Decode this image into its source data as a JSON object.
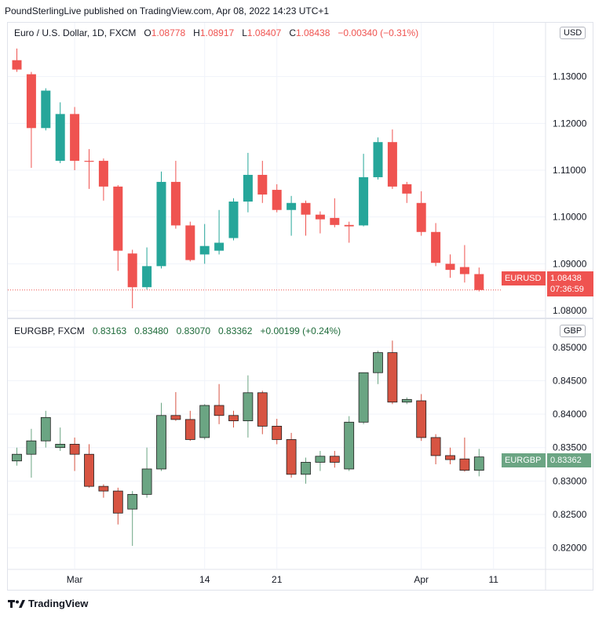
{
  "header": {
    "text": "PoundSterlingLive published on TradingView.com, Apr 08, 2022 14:23 UTC+1"
  },
  "footer": {
    "logo_icon": "tradingview-logo-icon",
    "label": "TradingView"
  },
  "colors": {
    "up_top": "#26a69a",
    "down_top": "#ef5350",
    "up_bottom": "#6ba583",
    "down_bottom": "#d75442"
  },
  "top_pane": {
    "symbol": "Euro / U.S. Dollar, 1D, FXCM",
    "o_label": "O",
    "o": "1.08778",
    "h_label": "H",
    "h": "1.08917",
    "l_label": "L",
    "l": "1.08407",
    "c_label": "C",
    "c": "1.08438",
    "change": "−0.00340 (−0.31%)",
    "unit": "USD",
    "price_tag_name": "EURUSD",
    "price_tag_value": "1.08438",
    "price_tag_timer": "07:36:59"
  },
  "bottom_pane": {
    "symbol": "EURGBP, FXCM",
    "o": "0.83163",
    "h": "0.83480",
    "l": "0.83070",
    "c": "0.83362",
    "change": "+0.00199 (+0.24%)",
    "unit": "GBP",
    "price_tag_name": "EURGBP",
    "price_tag_value": "0.83362"
  },
  "x_axis": {
    "labels": [
      {
        "index": 4,
        "text": "Mar"
      },
      {
        "index": 13,
        "text": "14"
      },
      {
        "index": 18,
        "text": "21"
      },
      {
        "index": 28,
        "text": "Apr"
      },
      {
        "index": 33,
        "text": "11"
      }
    ]
  },
  "chart_data": [
    {
      "type": "candlestick",
      "title": "Euro / U.S. Dollar, 1D, FXCM",
      "ylim": [
        1.0785,
        1.1415
      ],
      "y_ticks": [
        "1.13000",
        "1.12000",
        "1.11000",
        "1.10000",
        "1.09000",
        "1.08000"
      ],
      "candles": [
        {
          "o": 1.1335,
          "h": 1.136,
          "l": 1.131,
          "c": 1.1315
        },
        {
          "o": 1.1305,
          "h": 1.131,
          "l": 1.1105,
          "c": 1.119
        },
        {
          "o": 1.119,
          "h": 1.1275,
          "l": 1.1185,
          "c": 1.127
        },
        {
          "o": 1.112,
          "h": 1.1245,
          "l": 1.1115,
          "c": 1.122
        },
        {
          "o": 1.122,
          "h": 1.1235,
          "l": 1.11,
          "c": 1.112
        },
        {
          "o": 1.112,
          "h": 1.1145,
          "l": 1.106,
          "c": 1.1118
        },
        {
          "o": 1.112,
          "h": 1.1125,
          "l": 1.1035,
          "c": 1.1065
        },
        {
          "o": 1.1065,
          "h": 1.1068,
          "l": 1.0885,
          "c": 1.0928
        },
        {
          "o": 1.0922,
          "h": 1.093,
          "l": 1.0805,
          "c": 1.085
        },
        {
          "o": 1.085,
          "h": 1.0935,
          "l": 1.0845,
          "c": 1.0895
        },
        {
          "o": 1.0895,
          "h": 1.1097,
          "l": 1.089,
          "c": 1.1075
        },
        {
          "o": 1.1075,
          "h": 1.112,
          "l": 1.0975,
          "c": 1.0982
        },
        {
          "o": 1.0982,
          "h": 1.099,
          "l": 1.0905,
          "c": 1.0908
        },
        {
          "o": 1.092,
          "h": 1.0985,
          "l": 1.09,
          "c": 1.0938
        },
        {
          "o": 1.0928,
          "h": 1.1015,
          "l": 1.092,
          "c": 1.0945
        },
        {
          "o": 1.0955,
          "h": 1.104,
          "l": 1.095,
          "c": 1.1033
        },
        {
          "o": 1.1033,
          "h": 1.1137,
          "l": 1.101,
          "c": 1.109
        },
        {
          "o": 1.109,
          "h": 1.112,
          "l": 1.103,
          "c": 1.1048
        },
        {
          "o": 1.1058,
          "h": 1.107,
          "l": 1.101,
          "c": 1.1015
        },
        {
          "o": 1.1015,
          "h": 1.1045,
          "l": 1.096,
          "c": 1.103
        },
        {
          "o": 1.103,
          "h": 1.1035,
          "l": 1.096,
          "c": 1.1005
        },
        {
          "o": 1.1005,
          "h": 1.1012,
          "l": 1.0965,
          "c": 1.0995
        },
        {
          "o": 1.0998,
          "h": 1.104,
          "l": 1.0978,
          "c": 1.0983
        },
        {
          "o": 1.0983,
          "h": 1.099,
          "l": 1.0945,
          "c": 1.098
        },
        {
          "o": 1.0982,
          "h": 1.1135,
          "l": 1.098,
          "c": 1.1085
        },
        {
          "o": 1.1085,
          "h": 1.117,
          "l": 1.108,
          "c": 1.116
        },
        {
          "o": 1.116,
          "h": 1.1187,
          "l": 1.106,
          "c": 1.1065
        },
        {
          "o": 1.107,
          "h": 1.1075,
          "l": 1.103,
          "c": 1.105
        },
        {
          "o": 1.103,
          "h": 1.1055,
          "l": 1.096,
          "c": 1.0968
        },
        {
          "o": 1.0968,
          "h": 1.0987,
          "l": 1.0895,
          "c": 1.0902
        },
        {
          "o": 1.09,
          "h": 1.092,
          "l": 1.087,
          "c": 1.0887
        },
        {
          "o": 1.0893,
          "h": 1.094,
          "l": 1.086,
          "c": 1.0878
        },
        {
          "o": 1.0878,
          "h": 1.0892,
          "l": 1.0841,
          "c": 1.0844
        }
      ]
    },
    {
      "type": "candlestick",
      "title": "EURGBP, FXCM",
      "ylim": [
        0.8169,
        0.8542
      ],
      "y_ticks": [
        "0.85000",
        "0.84500",
        "0.84000",
        "0.83500",
        "0.83000",
        "0.82500",
        "0.82000"
      ],
      "candles": [
        {
          "o": 0.833,
          "h": 0.835,
          "l": 0.8323,
          "c": 0.834
        },
        {
          "o": 0.834,
          "h": 0.8378,
          "l": 0.8305,
          "c": 0.836
        },
        {
          "o": 0.836,
          "h": 0.8405,
          "l": 0.835,
          "c": 0.8395
        },
        {
          "o": 0.835,
          "h": 0.838,
          "l": 0.8345,
          "c": 0.8355
        },
        {
          "o": 0.8355,
          "h": 0.8365,
          "l": 0.8315,
          "c": 0.834
        },
        {
          "o": 0.834,
          "h": 0.8355,
          "l": 0.829,
          "c": 0.8292
        },
        {
          "o": 0.8292,
          "h": 0.8295,
          "l": 0.8275,
          "c": 0.8285
        },
        {
          "o": 0.8285,
          "h": 0.829,
          "l": 0.8235,
          "c": 0.8252
        },
        {
          "o": 0.8258,
          "h": 0.8285,
          "l": 0.8203,
          "c": 0.828
        },
        {
          "o": 0.828,
          "h": 0.835,
          "l": 0.8275,
          "c": 0.8318
        },
        {
          "o": 0.8318,
          "h": 0.8417,
          "l": 0.8315,
          "c": 0.8398
        },
        {
          "o": 0.8398,
          "h": 0.8433,
          "l": 0.839,
          "c": 0.8392
        },
        {
          "o": 0.8392,
          "h": 0.8405,
          "l": 0.836,
          "c": 0.8362
        },
        {
          "o": 0.8365,
          "h": 0.8415,
          "l": 0.8362,
          "c": 0.8413
        },
        {
          "o": 0.8413,
          "h": 0.8445,
          "l": 0.8385,
          "c": 0.8398
        },
        {
          "o": 0.8398,
          "h": 0.8405,
          "l": 0.838,
          "c": 0.839
        },
        {
          "o": 0.839,
          "h": 0.8458,
          "l": 0.8365,
          "c": 0.8432
        },
        {
          "o": 0.8432,
          "h": 0.8435,
          "l": 0.837,
          "c": 0.8382
        },
        {
          "o": 0.8382,
          "h": 0.8393,
          "l": 0.8355,
          "c": 0.8362
        },
        {
          "o": 0.8362,
          "h": 0.8372,
          "l": 0.8305,
          "c": 0.831
        },
        {
          "o": 0.831,
          "h": 0.8335,
          "l": 0.8296,
          "c": 0.8328
        },
        {
          "o": 0.8328,
          "h": 0.8345,
          "l": 0.8315,
          "c": 0.8337
        },
        {
          "o": 0.8337,
          "h": 0.8345,
          "l": 0.832,
          "c": 0.8328
        },
        {
          "o": 0.8318,
          "h": 0.8397,
          "l": 0.8315,
          "c": 0.8388
        },
        {
          "o": 0.8388,
          "h": 0.846,
          "l": 0.8385,
          "c": 0.8462
        },
        {
          "o": 0.8462,
          "h": 0.8495,
          "l": 0.8445,
          "c": 0.8492
        },
        {
          "o": 0.8492,
          "h": 0.851,
          "l": 0.8415,
          "c": 0.8418
        },
        {
          "o": 0.8418,
          "h": 0.8425,
          "l": 0.8415,
          "c": 0.8422
        },
        {
          "o": 0.842,
          "h": 0.843,
          "l": 0.836,
          "c": 0.8365
        },
        {
          "o": 0.8365,
          "h": 0.837,
          "l": 0.8325,
          "c": 0.8338
        },
        {
          "o": 0.8338,
          "h": 0.835,
          "l": 0.8325,
          "c": 0.8332
        },
        {
          "o": 0.8333,
          "h": 0.8365,
          "l": 0.8314,
          "c": 0.8316
        },
        {
          "o": 0.8316,
          "h": 0.8348,
          "l": 0.8307,
          "c": 0.8336
        }
      ]
    }
  ]
}
